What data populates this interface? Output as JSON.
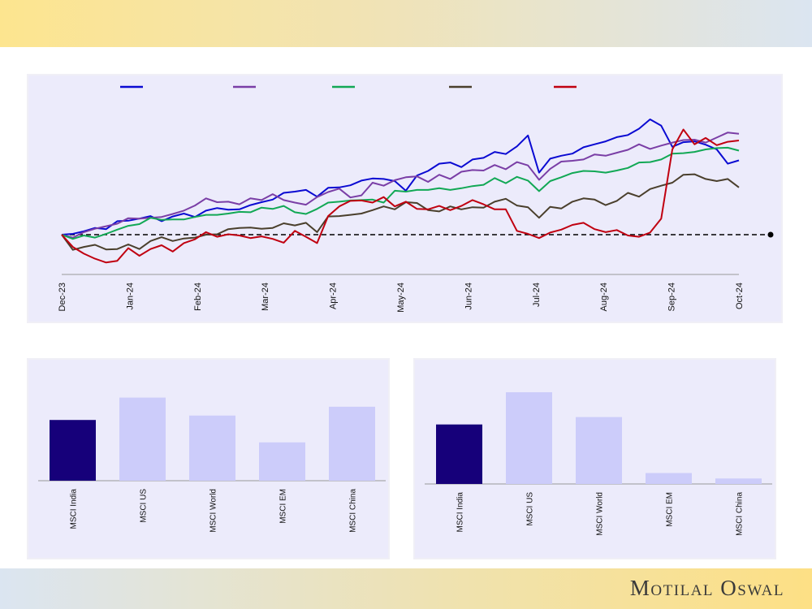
{
  "brand": {
    "name": "Motilal Oswal"
  },
  "chart_data": [
    {
      "type": "line",
      "title": "",
      "xlabel": "",
      "ylabel": "",
      "x_ticks": [
        "Dec-23",
        "Jan-24",
        "Feb-24",
        "Mar-24",
        "Apr-24",
        "May-24",
        "Jun-24",
        "Jul-24",
        "Aug-24",
        "Sep-24",
        "Oct-24"
      ],
      "baseline": 100,
      "ylim": [
        90,
        130
      ],
      "legend": "top",
      "grid": false,
      "colors": [
        "#0a0ad2",
        "#7a3ea6",
        "#12a855",
        "#4a3f2c",
        "#c00010"
      ],
      "series": [
        {
          "name": "",
          "values": [
            100,
            100.2,
            100.8,
            101.6,
            101.3,
            103.2,
            103.3,
            103.8,
            104.4,
            103.2,
            104.3,
            105.0,
            104.2,
            105.7,
            106.3,
            105.9,
            106.0,
            107.0,
            107.7,
            108.3,
            109.9,
            110.2,
            110.6,
            109.0,
            111.1,
            111.2,
            111.7,
            112.8,
            113.3,
            113.2,
            112.7,
            110.4,
            114.0,
            115.1,
            116.8,
            117.1,
            116.0,
            117.8,
            118.2,
            119.6,
            119.1,
            120.9,
            123.5,
            114.7,
            118.0,
            118.7,
            119.2,
            120.7,
            121.4,
            122.1,
            123.1,
            123.6,
            125.1,
            127.3,
            125.8,
            120.8,
            121.9,
            122.1,
            121.3,
            120.2,
            116.8,
            117.6
          ]
        },
        {
          "name": "",
          "values": [
            100,
            99.3,
            100.6,
            101.4,
            102.0,
            102.6,
            103.9,
            103.8,
            104.0,
            104.2,
            104.9,
            105.7,
            106.9,
            108.6,
            107.7,
            107.8,
            107.2,
            108.6,
            108.2,
            109.6,
            108.2,
            107.6,
            107.1,
            108.9,
            110.1,
            110.9,
            108.8,
            109.3,
            112.3,
            111.6,
            112.9,
            113.6,
            113.8,
            112.5,
            114.2,
            113.2,
            114.9,
            115.3,
            115.2,
            116.5,
            115.5,
            117.2,
            116.4,
            113.0,
            115.6,
            117.3,
            117.5,
            117.8,
            119.0,
            118.7,
            119.4,
            120.1,
            121.4,
            120.3,
            121.1,
            121.8,
            122.4,
            122.5,
            121.8,
            123.0,
            124.2,
            123.9
          ]
        },
        {
          "name": "",
          "values": [
            100,
            99.0,
            99.8,
            99.3,
            100.2,
            101.2,
            102.1,
            102.5,
            104.0,
            103.5,
            103.6,
            103.6,
            104.2,
            104.7,
            104.7,
            105.0,
            105.4,
            105.3,
            106.4,
            106.1,
            106.8,
            105.3,
            104.9,
            106.1,
            107.6,
            107.8,
            108.1,
            108.2,
            108.3,
            107.6,
            110.4,
            110.2,
            110.6,
            110.6,
            111.0,
            110.6,
            111.0,
            111.5,
            111.8,
            113.4,
            112.2,
            113.7,
            112.8,
            110.3,
            112.7,
            113.6,
            114.6,
            115.1,
            115.0,
            114.7,
            115.2,
            115.8,
            117.1,
            117.2,
            117.8,
            119.2,
            119.3,
            119.6,
            120.2,
            120.5,
            120.6,
            119.9
          ]
        },
        {
          "name": "",
          "values": [
            100,
            96.4,
            97.1,
            97.6,
            96.5,
            96.6,
            97.7,
            96.6,
            98.5,
            99.4,
            98.5,
            99.1,
            99.3,
            100.0,
            100.1,
            101.3,
            101.6,
            101.7,
            101.4,
            101.6,
            102.7,
            102.2,
            102.8,
            100.6,
            104.3,
            104.4,
            104.7,
            105.0,
            105.8,
            106.7,
            106.0,
            107.7,
            107.5,
            105.8,
            105.5,
            106.7,
            106.0,
            106.5,
            106.4,
            107.8,
            108.5,
            106.9,
            106.5,
            104.0,
            106.6,
            106.2,
            107.8,
            108.6,
            108.3,
            107.0,
            108.0,
            109.9,
            109.0,
            110.8,
            111.6,
            112.3,
            114.2,
            114.3,
            113.2,
            112.7,
            113.2,
            111.2
          ]
        },
        {
          "name": "",
          "values": [
            100,
            97.1,
            95.5,
            94.3,
            93.4,
            93.8,
            96.8,
            95.0,
            96.6,
            97.5,
            96.0,
            98.0,
            98.9,
            100.6,
            99.5,
            100.1,
            99.8,
            99.2,
            99.6,
            99.0,
            98.1,
            100.9,
            99.5,
            98.0,
            104.4,
            106.7,
            108.0,
            108.1,
            107.6,
            108.9,
            106.7,
            107.8,
            106.1,
            106.0,
            106.8,
            105.8,
            106.8,
            108.2,
            107.2,
            106.0,
            106.0,
            100.9,
            100.2,
            99.2,
            100.5,
            101.2,
            102.3,
            102.8,
            101.3,
            100.6,
            101.1,
            99.8,
            99.5,
            100.5,
            103.8,
            120.2,
            124.9,
            121.4,
            122.9,
            121.2,
            122.0,
            122.3
          ]
        }
      ]
    },
    {
      "type": "bar",
      "title": "",
      "categories": [
        "MSCI India",
        "MSCI US",
        "MSCI World",
        "MSCI EM",
        "MSCI China"
      ],
      "values": [
        17.9,
        24.5,
        19.2,
        11.3,
        21.8
      ],
      "ylim": [
        0,
        28
      ],
      "highlight_index": 0,
      "colors": {
        "highlight": "#16007a",
        "other": "#ccccfa"
      }
    },
    {
      "type": "bar",
      "title": "",
      "categories": [
        "MSCI India",
        "MSCI US",
        "MSCI World",
        "MSCI EM",
        "MSCI China"
      ],
      "values": [
        21.8,
        33.6,
        24.5,
        4.0,
        2.0
      ],
      "ylim": [
        0,
        36
      ],
      "highlight_index": 0,
      "colors": {
        "highlight": "#16007a",
        "other": "#ccccfa"
      }
    }
  ]
}
